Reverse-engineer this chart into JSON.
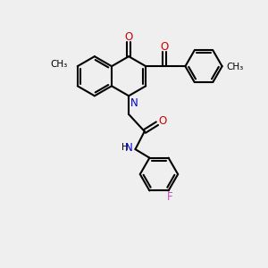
{
  "bg_color": "#efefef",
  "bond_color": "#000000",
  "N_color": "#0000cc",
  "O_color": "#cc0000",
  "F_color": "#cc44cc",
  "line_width": 1.5,
  "fig_size": [
    3.0,
    3.0
  ],
  "dpi": 100,
  "xlim": [
    0,
    10
  ],
  "ylim": [
    0,
    10
  ]
}
